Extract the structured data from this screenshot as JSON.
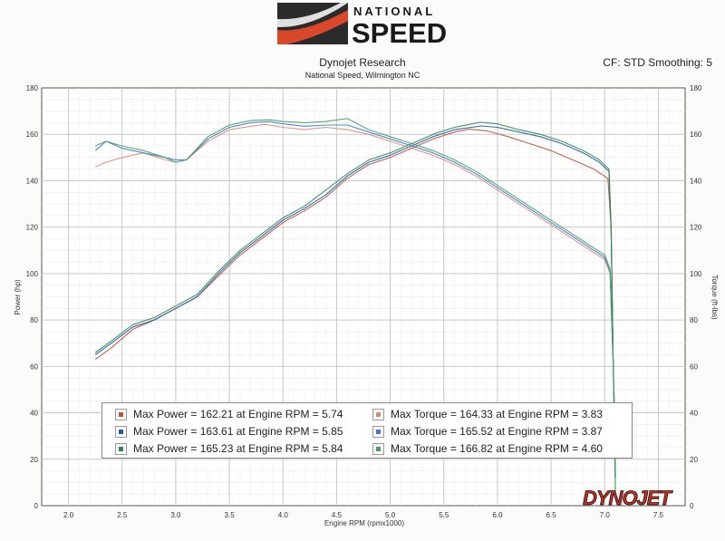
{
  "header": {
    "logo_line1": "NATIONAL",
    "logo_line2": "SPEED",
    "title": "Dynojet Research",
    "subtitle": "National Speed, Wilmington NC",
    "settings": "CF: STD Smoothing: 5"
  },
  "watermark": "DYNOJET",
  "colors": {
    "run1": "#c0503c",
    "run2": "#1e5aa8",
    "run3": "#2e8a4a",
    "torque1": "#e08a72",
    "torque2": "#3a7ad0",
    "torque3": "#48a060",
    "grid": "#c8c8c8",
    "logo_accent": "#d9482b"
  },
  "legend": {
    "left": [
      {
        "text": "Max Power = 162.21 at Engine RPM = 5.74",
        "color": "#c0503c"
      },
      {
        "text": "Max Power = 163.61 at Engine RPM = 5.85",
        "color": "#1e5aa8"
      },
      {
        "text": "Max Power = 165.23 at Engine RPM = 5.84",
        "color": "#2e8a4a"
      }
    ],
    "right": [
      {
        "text": "Max Torque = 164.33 at Engine RPM = 3.83",
        "color": "#e08a72"
      },
      {
        "text": "Max Torque = 165.52 at Engine RPM = 3.87",
        "color": "#3a7ad0"
      },
      {
        "text": "Max Torque = 166.82 at Engine RPM = 4.60",
        "color": "#48a060"
      }
    ]
  },
  "chart_data": {
    "type": "line",
    "xlabel": "Engine RPM (rpmx1000)",
    "ylabel_left": "Power (hp)",
    "ylabel_right": "Torque (ft-lbs)",
    "xlim": [
      1.75,
      7.75
    ],
    "ylim": [
      0,
      180
    ],
    "xticks": [
      "2.0",
      "2.5",
      "3.0",
      "3.5",
      "4.0",
      "4.5",
      "5.0",
      "5.5",
      "6.0",
      "6.5",
      "7.0",
      "7.5"
    ],
    "yticks": [
      "0",
      "20",
      "40",
      "60",
      "80",
      "100",
      "120",
      "140",
      "160",
      "180"
    ],
    "grid": true,
    "series": [
      {
        "kind": "power",
        "x": [
          2.25,
          2.4,
          2.6,
          2.8,
          3.0,
          3.2,
          3.4,
          3.6,
          3.8,
          4.0,
          4.2,
          4.4,
          4.6,
          4.8,
          5.0,
          5.2,
          5.4,
          5.6,
          5.74,
          5.9,
          6.1,
          6.3,
          6.5,
          6.7,
          6.9,
          7.03,
          7.06,
          7.08,
          7.1
        ],
        "y": [
          63,
          68,
          76,
          80,
          85,
          90,
          99,
          108,
          115,
          122,
          127,
          133,
          141,
          147,
          150,
          154,
          158,
          161,
          162.2,
          161.5,
          159,
          156,
          153,
          149,
          145,
          141,
          120,
          60,
          25
        ]
      },
      {
        "kind": "power",
        "x": [
          2.25,
          2.4,
          2.6,
          2.8,
          3.0,
          3.2,
          3.4,
          3.6,
          3.8,
          4.0,
          4.2,
          4.4,
          4.6,
          4.8,
          5.0,
          5.2,
          5.4,
          5.6,
          5.85,
          6.0,
          6.2,
          6.4,
          6.6,
          6.8,
          6.95,
          7.04,
          7.06,
          7.08,
          7.1
        ],
        "y": [
          65,
          70,
          77,
          80,
          85,
          90,
          100,
          109,
          116,
          123,
          128,
          134,
          142,
          148,
          151,
          155,
          159,
          162,
          163.6,
          163,
          161,
          159,
          156,
          152,
          148,
          144,
          120,
          60,
          12
        ]
      },
      {
        "kind": "power",
        "x": [
          2.25,
          2.4,
          2.6,
          2.8,
          3.0,
          3.2,
          3.4,
          3.6,
          3.8,
          4.0,
          4.2,
          4.4,
          4.6,
          4.8,
          5.0,
          5.2,
          5.4,
          5.6,
          5.84,
          6.0,
          6.2,
          6.4,
          6.6,
          6.8,
          6.95,
          7.04,
          7.06,
          7.08,
          7.1
        ],
        "y": [
          66,
          71,
          78,
          81,
          86,
          91,
          101,
          110,
          117,
          124,
          129,
          136,
          143,
          149,
          152,
          156,
          160,
          163,
          165.2,
          164.5,
          162,
          160,
          157,
          153,
          149,
          145,
          120,
          60,
          5
        ]
      },
      {
        "kind": "torque",
        "x": [
          2.25,
          2.35,
          2.5,
          2.7,
          2.9,
          3.0,
          3.1,
          3.3,
          3.5,
          3.7,
          3.83,
          4.0,
          4.2,
          4.4,
          4.6,
          4.8,
          5.0,
          5.2,
          5.4,
          5.6,
          5.8,
          6.0,
          6.2,
          6.4,
          6.6,
          6.8,
          7.0,
          7.05,
          7.08,
          7.1
        ],
        "y": [
          146,
          148,
          150,
          152,
          149,
          148,
          149,
          157,
          162,
          163.5,
          164.3,
          163,
          162,
          163,
          162,
          160,
          157,
          154,
          151,
          147,
          142,
          136,
          130,
          124,
          118,
          112,
          106,
          100,
          60,
          30
        ]
      },
      {
        "kind": "torque",
        "x": [
          2.25,
          2.35,
          2.5,
          2.7,
          2.9,
          3.0,
          3.1,
          3.3,
          3.5,
          3.7,
          3.87,
          4.0,
          4.2,
          4.4,
          4.6,
          4.8,
          5.0,
          5.2,
          5.4,
          5.6,
          5.8,
          6.0,
          6.2,
          6.4,
          6.6,
          6.8,
          7.0,
          7.05,
          7.08,
          7.1
        ],
        "y": [
          153,
          157,
          154,
          152,
          150,
          149,
          149,
          158,
          163,
          165,
          165.5,
          164.5,
          163.5,
          164,
          164,
          161,
          158,
          155,
          152,
          148,
          143,
          137,
          131,
          125,
          119,
          113,
          107,
          101,
          60,
          20
        ]
      },
      {
        "kind": "torque",
        "x": [
          2.25,
          2.35,
          2.5,
          2.7,
          2.9,
          3.0,
          3.1,
          3.3,
          3.5,
          3.7,
          3.87,
          4.0,
          4.2,
          4.4,
          4.6,
          4.8,
          5.0,
          5.2,
          5.4,
          5.6,
          5.8,
          6.0,
          6.2,
          6.4,
          6.6,
          6.8,
          7.0,
          7.05,
          7.08,
          7.1
        ],
        "y": [
          155,
          157,
          155,
          153,
          150,
          148,
          149,
          159,
          164,
          166,
          166.3,
          165.5,
          165,
          165.5,
          166.8,
          162,
          159,
          156,
          153,
          149,
          144,
          138,
          132,
          126,
          120,
          114,
          108,
          102,
          60,
          15
        ]
      }
    ]
  }
}
